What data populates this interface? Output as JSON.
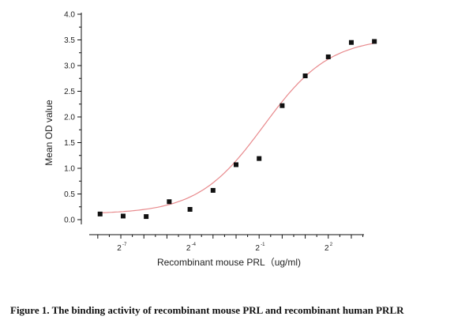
{
  "chart_data": {
    "type": "scatter",
    "xlabel": "Recombinant mouse PRL（ug/ml)",
    "ylabel": "Mean OD value",
    "x_scale": "log2",
    "xlim": [
      -8.2,
      4.2
    ],
    "ylim": [
      0,
      4.0
    ],
    "y_ticks": [
      "0.0",
      "0.5",
      "1.0",
      "1.5",
      "2.0",
      "2.5",
      "3.0",
      "3.5",
      "4.0"
    ],
    "x_ticks": [
      {
        "base": "2",
        "exp": "-7",
        "x": -7
      },
      {
        "base": "2",
        "exp": "-4",
        "x": -4
      },
      {
        "base": "2",
        "exp": "-1",
        "x": -1
      },
      {
        "base": "2",
        "exp": "2",
        "x": 2
      }
    ],
    "series": [
      {
        "points": [
          {
            "x": -7.9,
            "y": 0.11
          },
          {
            "x": -6.9,
            "y": 0.07
          },
          {
            "x": -5.9,
            "y": 0.06
          },
          {
            "x": -4.9,
            "y": 0.35
          },
          {
            "x": -4.0,
            "y": 0.2
          },
          {
            "x": -3.0,
            "y": 0.57
          },
          {
            "x": -2.0,
            "y": 1.07
          },
          {
            "x": -1.0,
            "y": 1.19
          },
          {
            "x": 0.0,
            "y": 2.22
          },
          {
            "x": 1.0,
            "y": 2.8
          },
          {
            "x": 2.0,
            "y": 3.17
          },
          {
            "x": 3.0,
            "y": 3.45
          },
          {
            "x": 4.0,
            "y": 3.47
          }
        ],
        "marker_color": "#111111"
      }
    ],
    "fit_curve": {
      "model": "4PL",
      "bottom": 0.11,
      "top": 3.55,
      "center_log2": -0.8,
      "slope": 0.7,
      "color": "#e8898c"
    },
    "grid": false,
    "legend": "none"
  },
  "caption": "Figure 1. The binding activity of recombinant mouse PRL and recombinant human PRLR"
}
